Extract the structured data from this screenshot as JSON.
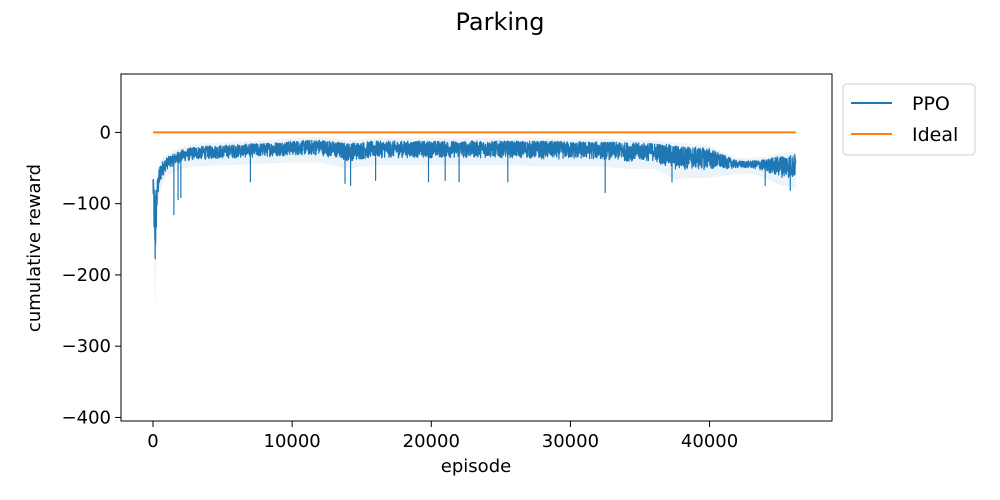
{
  "chart_data": {
    "type": "line",
    "title": "Parking",
    "xlabel": "episode",
    "ylabel": "cumulative reward",
    "xlim": [
      -2300,
      48800
    ],
    "ylim": [
      -405,
      82
    ],
    "xticks": [
      0,
      10000,
      20000,
      30000,
      40000
    ],
    "xtick_labels": [
      "0",
      "10000",
      "20000",
      "30000",
      "40000"
    ],
    "yticks": [
      0,
      -100,
      -200,
      -300,
      -400
    ],
    "ytick_labels": [
      "0",
      "−100",
      "−200",
      "−300",
      "−400"
    ],
    "grid": false,
    "legend_placement": "outside-top-right",
    "series": [
      {
        "name": "PPO",
        "color": "#1f77b4",
        "band": true,
        "x": [
          0,
          50,
          150,
          250,
          350,
          500,
          700,
          1000,
          1500,
          2000,
          3000,
          5000,
          8000,
          10000,
          12000,
          14000,
          16000,
          18000,
          20000,
          22000,
          24000,
          26000,
          28000,
          30000,
          32000,
          34000,
          36000,
          37500,
          38500,
          40000,
          41000,
          42000,
          43000,
          44000,
          45000,
          46200
        ],
        "low": [
          -100,
          -145,
          -245,
          -150,
          -100,
          -80,
          -65,
          -55,
          -50,
          -45,
          -42,
          -40,
          -38,
          -36,
          -36,
          -45,
          -40,
          -40,
          -40,
          -40,
          -40,
          -40,
          -42,
          -42,
          -42,
          -45,
          -45,
          -60,
          -58,
          -58,
          -55,
          -52,
          -52,
          -58,
          -68,
          -72
        ],
        "high": [
          -55,
          -70,
          -75,
          -70,
          -60,
          -45,
          -40,
          -35,
          -30,
          -25,
          -20,
          -18,
          -15,
          -12,
          -10,
          -15,
          -12,
          -12,
          -12,
          -12,
          -12,
          -12,
          -12,
          -13,
          -13,
          -14,
          -15,
          -18,
          -20,
          -22,
          -32,
          -40,
          -40,
          -38,
          -33,
          -30
        ],
        "spikes": [
          {
            "x": 1500,
            "y": -116
          },
          {
            "x": 1800,
            "y": -95
          },
          {
            "x": 2000,
            "y": -92
          },
          {
            "x": 7000,
            "y": -70
          },
          {
            "x": 13800,
            "y": -72
          },
          {
            "x": 14200,
            "y": -75
          },
          {
            "x": 16000,
            "y": -68
          },
          {
            "x": 19800,
            "y": -70
          },
          {
            "x": 21000,
            "y": -68
          },
          {
            "x": 22000,
            "y": -70
          },
          {
            "x": 25500,
            "y": -70
          },
          {
            "x": 32500,
            "y": -85
          },
          {
            "x": 37300,
            "y": -70
          },
          {
            "x": 44000,
            "y": -75
          },
          {
            "x": 45800,
            "y": -82
          }
        ]
      },
      {
        "name": "Ideal",
        "color": "#ff7f0e",
        "x": [
          0,
          46200
        ],
        "y": [
          0,
          0
        ]
      }
    ]
  }
}
